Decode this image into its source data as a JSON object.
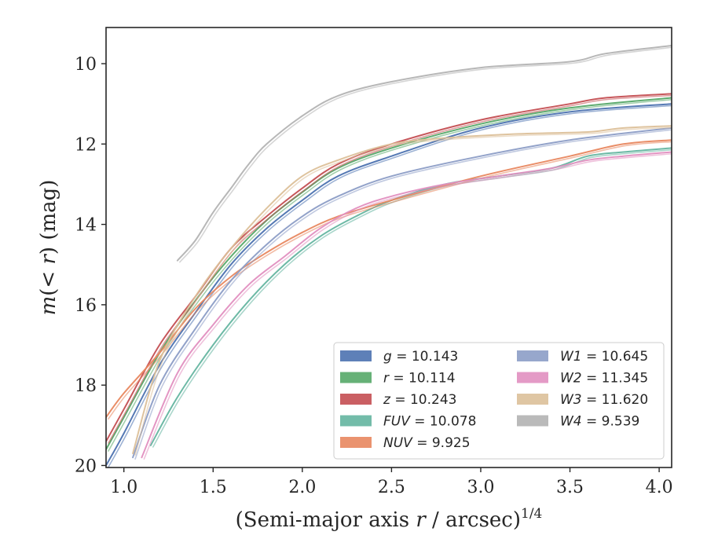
{
  "chart_data": {
    "type": "line",
    "title": "",
    "xlabel_main": "(Semi-major axis ",
    "xlabel_var": "r",
    "xlabel_tail": " / arcsec)",
    "xlabel_exp": "1/4",
    "ylabel_main": "m",
    "ylabel_inner": "(< ",
    "ylabel_var": "r",
    "ylabel_tail": ") (mag)",
    "xlim": [
      0.9,
      4.07
    ],
    "ylim": [
      20.05,
      9.1
    ],
    "y_inverted": true,
    "x_ticks": [
      1.0,
      1.5,
      2.0,
      2.5,
      3.0,
      3.5,
      4.0
    ],
    "x_tick_labels": [
      "1.0",
      "1.5",
      "2.0",
      "2.5",
      "3.0",
      "3.5",
      "4.0"
    ],
    "y_ticks": [
      10,
      12,
      14,
      16,
      18,
      20
    ],
    "y_tick_labels": [
      "10",
      "12",
      "14",
      "16",
      "18",
      "20"
    ],
    "grid": false,
    "legend_position": "lower-right",
    "legend_columns": 2,
    "series": [
      {
        "name": "g",
        "legend_label": "= 10.143",
        "color": "#4c72b0",
        "x": [
          0.9,
          1.0,
          1.2,
          1.4,
          1.6,
          1.8,
          2.0,
          2.2,
          2.5,
          3.0,
          3.5,
          4.07
        ],
        "y": [
          20.0,
          19.2,
          17.5,
          16.2,
          15.0,
          14.1,
          13.4,
          12.8,
          12.3,
          11.6,
          11.2,
          11.0
        ]
      },
      {
        "name": "r",
        "legend_label": "= 10.114",
        "color": "#55a868",
        "x": [
          0.9,
          1.0,
          1.2,
          1.4,
          1.6,
          1.8,
          2.0,
          2.2,
          2.5,
          3.0,
          3.5,
          4.07
        ],
        "y": [
          19.6,
          18.8,
          17.2,
          15.9,
          14.8,
          13.9,
          13.2,
          12.6,
          12.1,
          11.5,
          11.1,
          10.85
        ]
      },
      {
        "name": "z",
        "legend_label": "= 10.243",
        "color": "#c44e52",
        "x": [
          0.9,
          1.0,
          1.2,
          1.4,
          1.6,
          1.8,
          2.0,
          2.2,
          2.5,
          3.0,
          3.5,
          3.7,
          4.07
        ],
        "y": [
          19.4,
          18.6,
          17.0,
          15.8,
          14.6,
          13.8,
          13.1,
          12.5,
          12.0,
          11.4,
          11.0,
          10.85,
          10.75
        ]
      },
      {
        "name": "FUV",
        "legend_label": "= 10.078",
        "color": "#64b5a0",
        "x": [
          1.15,
          1.3,
          1.5,
          1.7,
          1.9,
          2.1,
          2.3,
          2.5,
          2.8,
          3.1,
          3.4,
          3.6,
          3.8,
          4.07
        ],
        "y": [
          19.5,
          18.3,
          17.0,
          15.9,
          15.0,
          14.3,
          13.8,
          13.4,
          13.0,
          12.8,
          12.6,
          12.3,
          12.2,
          12.1
        ]
      },
      {
        "name": "NUV",
        "legend_label": "= 9.925",
        "color": "#e8875f",
        "x": [
          0.9,
          1.0,
          1.2,
          1.4,
          1.6,
          1.8,
          2.0,
          2.2,
          2.5,
          3.0,
          3.5,
          3.8,
          4.07
        ],
        "y": [
          18.8,
          18.2,
          17.2,
          16.1,
          15.3,
          14.7,
          14.2,
          13.8,
          13.4,
          12.8,
          12.3,
          12.0,
          11.9
        ]
      },
      {
        "name": "W1",
        "legend_label": "= 10.645",
        "color": "#8c9dc6",
        "x": [
          1.05,
          1.2,
          1.4,
          1.6,
          1.8,
          2.0,
          2.2,
          2.5,
          3.0,
          3.5,
          4.07
        ],
        "y": [
          19.8,
          18.0,
          16.6,
          15.4,
          14.5,
          13.8,
          13.3,
          12.8,
          12.3,
          11.9,
          11.6
        ]
      },
      {
        "name": "W2",
        "legend_label": "= 11.345",
        "color": "#e18fc0",
        "x": [
          1.1,
          1.3,
          1.5,
          1.7,
          1.9,
          2.1,
          2.3,
          2.5,
          2.8,
          3.1,
          3.4,
          3.6,
          3.8,
          4.07
        ],
        "y": [
          19.8,
          17.7,
          16.5,
          15.5,
          14.8,
          14.1,
          13.6,
          13.3,
          13.0,
          12.8,
          12.6,
          12.4,
          12.3,
          12.2
        ]
      },
      {
        "name": "W3",
        "legend_label": "= 11.620",
        "color": "#dcc099",
        "x": [
          1.05,
          1.2,
          1.4,
          1.6,
          1.8,
          2.0,
          2.2,
          2.5,
          2.8,
          3.2,
          3.6,
          3.8,
          4.07
        ],
        "y": [
          19.7,
          17.4,
          15.8,
          14.6,
          13.6,
          12.8,
          12.4,
          12.0,
          11.85,
          11.75,
          11.7,
          11.6,
          11.55
        ]
      },
      {
        "name": "W4",
        "legend_label": "= 9.539",
        "color": "#b3b3b3",
        "x": [
          1.3,
          1.4,
          1.5,
          1.6,
          1.7,
          1.8,
          2.0,
          2.2,
          2.5,
          3.0,
          3.5,
          3.7,
          4.07
        ],
        "y": [
          14.9,
          14.4,
          13.7,
          13.1,
          12.5,
          12.0,
          11.3,
          10.8,
          10.45,
          10.1,
          9.95,
          9.75,
          9.55
        ]
      }
    ]
  }
}
